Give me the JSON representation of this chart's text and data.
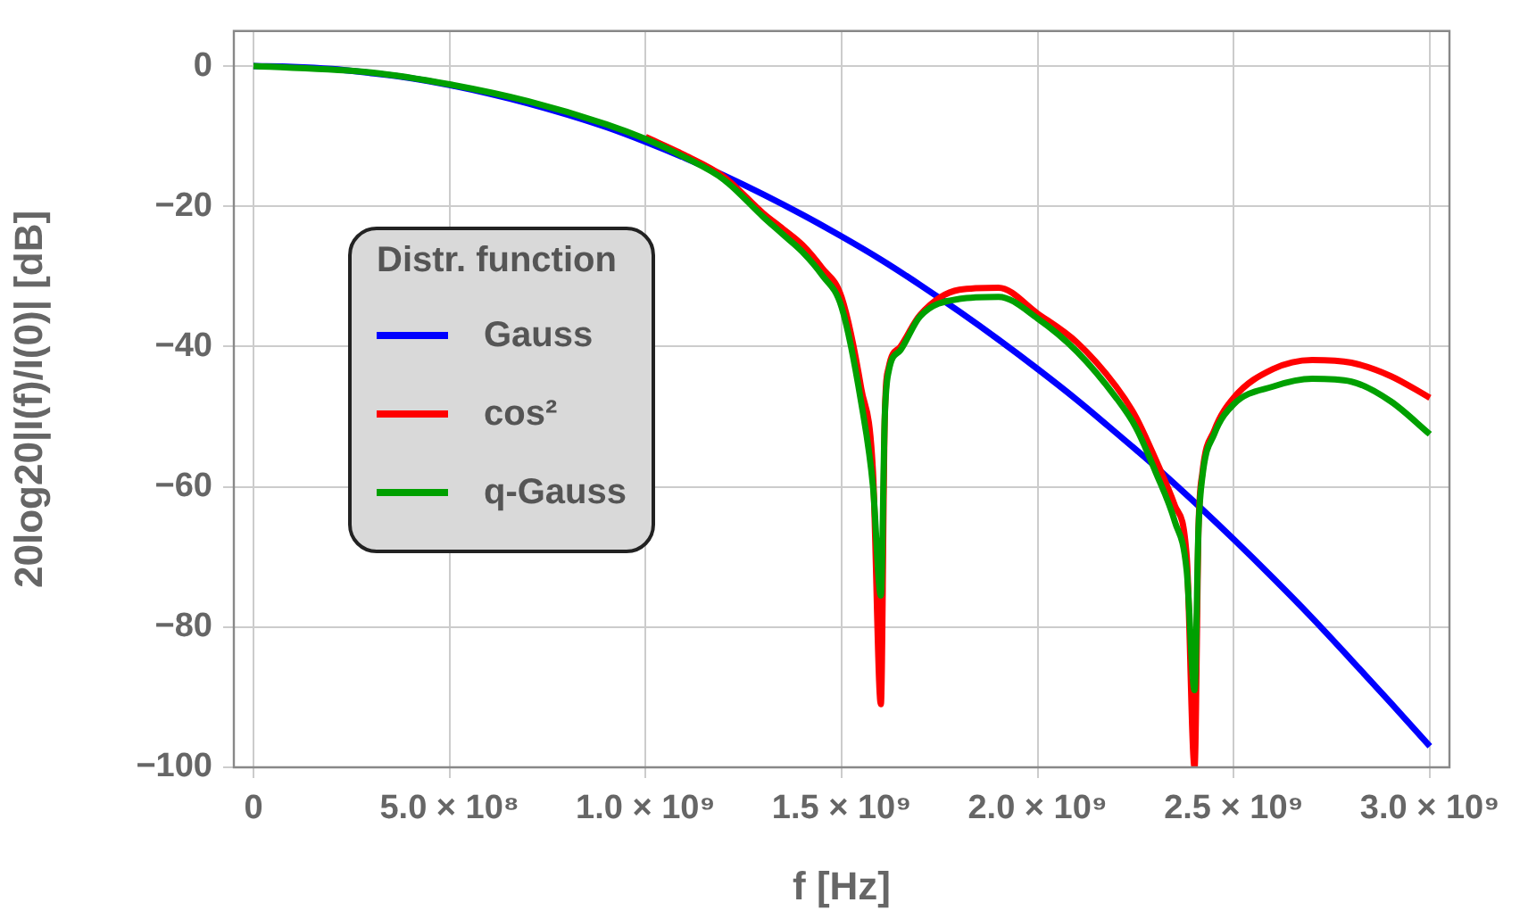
{
  "chart_data": {
    "type": "line",
    "xlabel": "f [Hz]",
    "ylabel": "20log20|I(f)/I(0)| [dB]",
    "legend_title": "Distr. function",
    "legend": "left",
    "grid": true,
    "line_style": "solid",
    "marker": "none",
    "xlim": [
      -50000000.0,
      3050000000.0
    ],
    "xticks": [
      0,
      {
        "value": 500000000.0,
        "label": "5.0 × 10⁸"
      },
      {
        "value": 1000000000.0,
        "label": "1.0 × 10⁹"
      },
      {
        "value": 1500000000.0,
        "label": "1.5 × 10⁹"
      },
      {
        "value": 2000000000.0,
        "label": "2.0 × 10⁹"
      },
      {
        "value": 2500000000.0,
        "label": "2.5 × 10⁹"
      },
      {
        "value": 3000000000.0,
        "label": "3.0 × 10⁹"
      }
    ],
    "ylim": [
      -100,
      5
    ],
    "yticks": [
      {
        "value": 0,
        "label": "0"
      },
      {
        "value": -20,
        "label": "−20"
      },
      {
        "value": -40,
        "label": "−40"
      },
      {
        "value": -60,
        "label": "−60"
      },
      {
        "value": -80,
        "label": "−80"
      },
      {
        "value": -100,
        "label": "−100"
      }
    ],
    "series": [
      {
        "name": "Gauss",
        "color": "#0000ff",
        "x": [
          0,
          100000000.0,
          200000000.0,
          300000000.0,
          400000000.0,
          500000000.0,
          600000000.0,
          700000000.0,
          800000000.0,
          900000000.0,
          1000000000.0,
          1100000000.0,
          1200000000.0,
          1300000000.0,
          1400000000.0,
          1500000000.0,
          1600000000.0,
          1700000000.0,
          1800000000.0,
          1900000000.0,
          2000000000.0,
          2100000000.0,
          2200000000.0,
          2300000000.0,
          2400000000.0,
          2500000000.0,
          2600000000.0,
          2700000000.0,
          2800000000.0,
          2900000000.0,
          3000000000.0
        ],
        "values": [
          0,
          -0.1,
          -0.4,
          -1.0,
          -1.7,
          -2.7,
          -3.9,
          -5.3,
          -6.9,
          -8.7,
          -10.8,
          -13.1,
          -15.6,
          -18.3,
          -21.2,
          -24.3,
          -27.6,
          -31.2,
          -35.0,
          -39.0,
          -43.2,
          -47.6,
          -52.3,
          -57.1,
          -62.2,
          -67.5,
          -73.0,
          -78.7,
          -84.7,
          -90.8,
          -97
        ]
      },
      {
        "name": "cos²",
        "color": "#ff0000",
        "x": [
          1000000000.0,
          1100000000.0,
          1200000000.0,
          1300000000.0,
          1350000000.0,
          1400000000.0,
          1450000000.0,
          1500000000.0,
          1550000000.0,
          1580000000.0,
          1600000000.0,
          1610000000.0,
          1620000000.0,
          1650000000.0,
          1700000000.0,
          1800000000.0,
          1900000000.0,
          2000000000.0,
          2100000000.0,
          2200000000.0,
          2250000000.0,
          2300000000.0,
          2350000000.0,
          2380000000.0,
          2400000000.0,
          2410000000.0,
          2420000000.0,
          2450000000.0,
          2500000000.0,
          2600000000.0,
          2700000000.0,
          2800000000.0,
          2900000000.0,
          3000000000.0
        ],
        "values": [
          -10.1,
          -12.7,
          -15.8,
          -21,
          -23.2,
          -25.5,
          -28.8,
          -33,
          -46,
          -58,
          -91,
          -50,
          -43,
          -40,
          -35.5,
          -31.9,
          -31.6,
          -35.3,
          -39.4,
          -45.7,
          -50,
          -56,
          -62.7,
          -70,
          -100,
          -66,
          -58,
          -52,
          -47.3,
          -43.2,
          -41.9,
          -42.3,
          -44.2,
          -47.3
        ]
      },
      {
        "name": "q-Gauss",
        "color": "#00a000",
        "x": [
          0,
          300000000.0,
          500000000.0,
          700000000.0,
          900000000.0,
          1000000000.0,
          1100000000.0,
          1200000000.0,
          1300000000.0,
          1350000000.0,
          1400000000.0,
          1450000000.0,
          1500000000.0,
          1550000000.0,
          1580000000.0,
          1600000000.0,
          1610000000.0,
          1620000000.0,
          1650000000.0,
          1700000000.0,
          1800000000.0,
          1900000000.0,
          2000000000.0,
          2100000000.0,
          2200000000.0,
          2250000000.0,
          2300000000.0,
          2350000000.0,
          2380000000.0,
          2400000000.0,
          2410000000.0,
          2420000000.0,
          2450000000.0,
          2500000000.0,
          2600000000.0,
          2700000000.0,
          2800000000.0,
          2900000000.0,
          3000000000.0
        ],
        "values": [
          0,
          -0.9,
          -2.6,
          -5.0,
          -8.3,
          -10.4,
          -13.0,
          -16.2,
          -21.5,
          -24,
          -26.5,
          -29.8,
          -34.4,
          -48,
          -60,
          -75.5,
          -50,
          -43.5,
          -40.5,
          -35.7,
          -33.2,
          -32.9,
          -36,
          -40.7,
          -47.3,
          -51.5,
          -57.8,
          -65,
          -72,
          -89,
          -66,
          -58.5,
          -52.5,
          -48.2,
          -45.7,
          -44.6,
          -45,
          -47.8,
          -52.5
        ]
      }
    ]
  }
}
